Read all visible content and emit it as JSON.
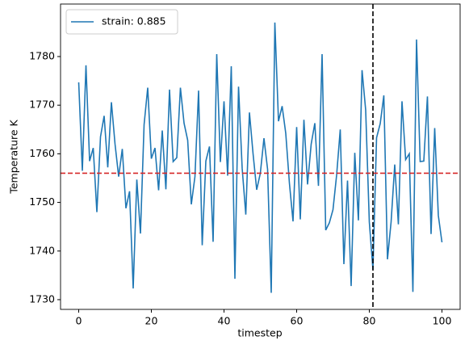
{
  "chart_data": {
    "type": "line",
    "xlabel": "timestep",
    "ylabel": "Temperature K",
    "x": [
      0,
      1,
      2,
      3,
      4,
      5,
      6,
      7,
      8,
      9,
      10,
      11,
      12,
      13,
      14,
      15,
      16,
      17,
      18,
      19,
      20,
      21,
      22,
      23,
      24,
      25,
      26,
      27,
      28,
      29,
      30,
      31,
      32,
      33,
      34,
      35,
      36,
      37,
      38,
      39,
      40,
      41,
      42,
      43,
      44,
      45,
      46,
      47,
      48,
      49,
      50,
      51,
      52,
      53,
      54,
      55,
      56,
      57,
      58,
      59,
      60,
      61,
      62,
      63,
      64,
      65,
      66,
      67,
      68,
      69,
      70,
      71,
      72,
      73,
      74,
      75,
      76,
      77,
      78,
      79,
      80,
      81,
      82,
      83,
      84,
      85,
      86,
      87,
      88,
      89,
      90,
      91,
      92,
      93,
      94,
      95,
      96,
      97,
      98,
      99,
      100
    ],
    "series": [
      {
        "name": "strain: 0.885",
        "color": "#1f77b4",
        "values": [
          1774.7,
          1756.5,
          1778.2,
          1758.5,
          1761.2,
          1748,
          1763.5,
          1767.8,
          1757.2,
          1770.6,
          1762,
          1755.3,
          1761,
          1748.8,
          1752.3,
          1732.3,
          1754.7,
          1743.6,
          1766,
          1773.6,
          1759,
          1761.2,
          1752.5,
          1764.8,
          1752.7,
          1773.2,
          1758.4,
          1759.2,
          1773.6,
          1766.3,
          1762.8,
          1749.6,
          1755.3,
          1773,
          1741.2,
          1758.5,
          1761.5,
          1741.9,
          1780.5,
          1758.3,
          1770.8,
          1755.5,
          1778,
          1734.3,
          1773.8,
          1757,
          1747.5,
          1768.5,
          1760,
          1752.6,
          1756,
          1763.2,
          1756.8,
          1731.4,
          1787,
          1766.7,
          1769.8,
          1764.2,
          1754,
          1746.1,
          1765.5,
          1746.5,
          1767,
          1753.7,
          1762,
          1766.3,
          1753.4,
          1780.5,
          1744.3,
          1745.8,
          1748.5,
          1755.6,
          1765,
          1737.3,
          1754.5,
          1732.8,
          1760.2,
          1746.3,
          1777.2,
          1769,
          1746,
          1736.2,
          1763.3,
          1766.2,
          1772,
          1738.3,
          1746,
          1757.8,
          1745.5,
          1770.8,
          1758.8,
          1760,
          1731.6,
          1783.5,
          1758.4,
          1758.5,
          1771.8,
          1743.5,
          1765.3,
          1747.3,
          1741.8
        ]
      }
    ],
    "hline": {
      "value": 1756,
      "color": "#d62728"
    },
    "vline": {
      "value": 81,
      "color": "#000000"
    },
    "xlim": [
      -5,
      105
    ],
    "ylim": [
      1728,
      1790.8
    ],
    "xticks": [
      0,
      20,
      40,
      60,
      80,
      100
    ],
    "yticks": [
      1730,
      1740,
      1750,
      1760,
      1770,
      1780
    ],
    "legend": "upper left"
  }
}
